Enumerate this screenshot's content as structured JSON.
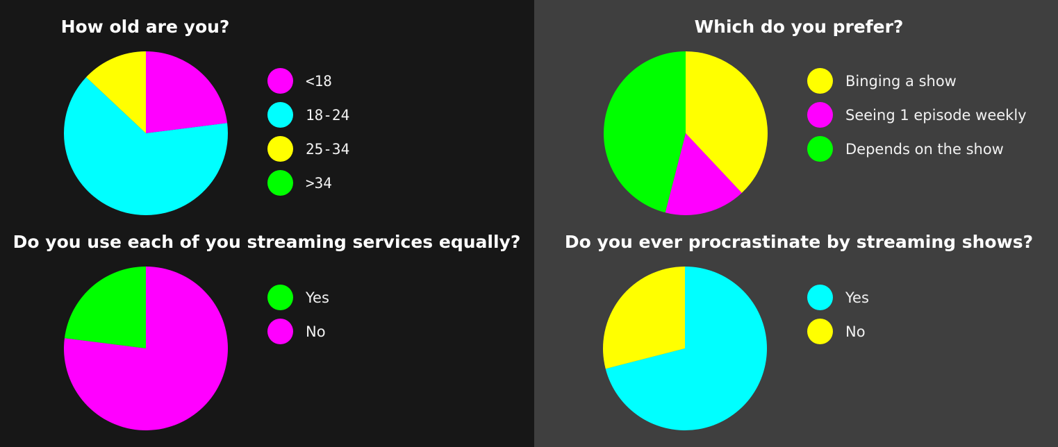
{
  "chart_data": [
    {
      "type": "pie",
      "title": "How old are you?",
      "categories": [
        "<18",
        "18-24",
        "25-34",
        ">34"
      ],
      "values": [
        23,
        64,
        13,
        0
      ],
      "colors": [
        "#ff00ff",
        "#00ffff",
        "#ffff00",
        "#00ff00"
      ],
      "legend_position": "right"
    },
    {
      "type": "pie",
      "title": "Which do you prefer?",
      "categories": [
        "Binging a show",
        "Seeing 1 episode weekly",
        "Depends on the show"
      ],
      "values": [
        38,
        16,
        46
      ],
      "colors": [
        "#ffff00",
        "#ff00ff",
        "#00ff00"
      ],
      "legend_position": "right"
    },
    {
      "type": "pie",
      "title": "Do you use each of you streaming services equally?",
      "categories": [
        "Yes",
        "No"
      ],
      "values": [
        23,
        77
      ],
      "colors": [
        "#00ff00",
        "#ff00ff"
      ],
      "legend_position": "right"
    },
    {
      "type": "pie",
      "title": "Do you ever procrastinate by streaming shows?",
      "categories": [
        "Yes",
        "No"
      ],
      "values": [
        71,
        29
      ],
      "colors": [
        "#00ffff",
        "#ffff00"
      ],
      "legend_position": "right"
    }
  ]
}
